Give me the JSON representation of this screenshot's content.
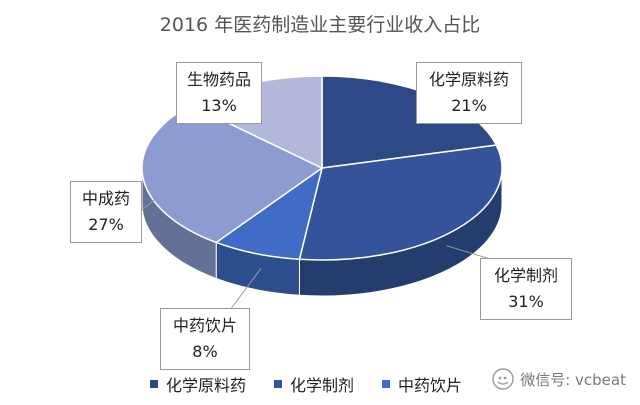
{
  "chart_data": {
    "type": "pie",
    "title": "2016 年医药制造业主要行业收入占比",
    "slices": [
      {
        "label": "化学原料药",
        "value": 21,
        "display": "21%",
        "color": "#2d4a86"
      },
      {
        "label": "化学制剂",
        "value": 31,
        "display": "31%",
        "color": "#34539a"
      },
      {
        "label": "中药饮片",
        "value": 8,
        "display": "8%",
        "color": "#3f6cc4"
      },
      {
        "label": "中成药",
        "value": 27,
        "display": "27%",
        "color": "#8c9bd1"
      },
      {
        "label": "生物药品",
        "value": 13,
        "display": "13%",
        "color": "#b4b7dc"
      }
    ],
    "legend": {
      "position": "bottom",
      "items": [
        {
          "label": "化学原料药",
          "color": "#2d4a86"
        },
        {
          "label": "化学制剂",
          "color": "#34539a"
        },
        {
          "label": "中药饮片",
          "color": "#3f6cc4"
        }
      ]
    }
  },
  "watermark": {
    "text": "微信号: vcbeat"
  }
}
